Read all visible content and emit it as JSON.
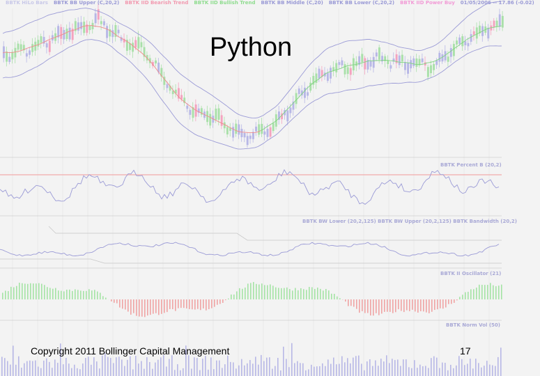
{
  "slide": {
    "title": "Python",
    "footer_left": "Copyright 2011 Bollinger Capital Management",
    "page_number": "17"
  },
  "chart_data": {
    "type": "stock_technical_chart",
    "panels": [
      {
        "id": "price",
        "legend": [
          {
            "text": "BBTK HiLo Bars",
            "color": "#c8c8e8"
          },
          {
            "text": "BBTK BB Upper (C,20,2)",
            "color": "#9a9ad6"
          },
          {
            "text": "BBTK IID Bearish Trend",
            "color": "#f29ab0"
          },
          {
            "text": "BBTK IID Bullish Trend",
            "color": "#8fdc8f"
          },
          {
            "text": "BBTK BB Middle (C,20)",
            "color": "#9a9ad6"
          },
          {
            "text": "BBTK BB Lower (C,20,2)",
            "color": "#9a9ad6"
          },
          {
            "text": "BBTK IID Power Buy",
            "color": "#f29ad6"
          },
          {
            "text": "01/05/2006 -- 17.86 (-0.02)",
            "color": "#9a9ad6"
          }
        ]
      },
      {
        "id": "percent-b",
        "label": "BBTK Percent B (20,2)"
      },
      {
        "id": "bandwidth",
        "label": "BBTK BW Lower (20,2,125)   BBTK BW Upper (20,2,125)   BBTK Bandwidth (20,2)"
      },
      {
        "id": "ii-oscillator",
        "label": "BBTK II Oscillator (21)"
      },
      {
        "id": "norm-vol",
        "label": "BBTK Norm Vol (50)"
      }
    ],
    "colors": {
      "candle_up": "#a9e0a9",
      "candle_down": "#b7b7e6",
      "candle_pink": "#f4a3bf",
      "band": "#9a9ad6",
      "middle_red": "#f08a8a",
      "middle_green": "#7fd47f",
      "osc_positive": "#a4e3a4",
      "osc_negative": "#f0a3a3",
      "volume": "#b7b7e6",
      "percent_b_line": "#9a9ad6",
      "reference_red": "#f29a9a"
    }
  }
}
